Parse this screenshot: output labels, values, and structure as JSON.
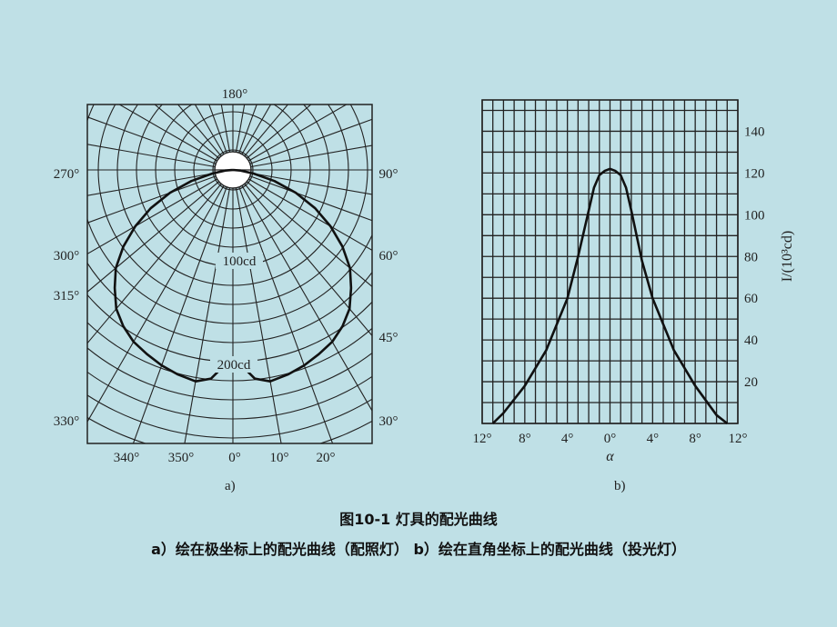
{
  "figure": {
    "caption_title": "图10-1  灯具的配光曲线",
    "caption_sub": "a）绘在极坐标上的配光曲线（配照灯）  b）绘在直角坐标上的配光曲线（投光灯）",
    "panel_a_label": "a)",
    "panel_b_label": "b)"
  },
  "chart_data": [
    {
      "id": "a",
      "type": "line",
      "coordinate_system": "polar",
      "angle_labels": [
        "180°",
        "270°",
        "90°",
        "300°",
        "60°",
        "315°",
        "45°",
        "330°",
        "30°",
        "340°",
        "350°",
        "0°",
        "10°",
        "20°"
      ],
      "radius_labels": [
        "100cd",
        "200cd"
      ],
      "series": [
        {
          "angle_deg": [
            0,
            3,
            6,
            10,
            15,
            20,
            25,
            30,
            35,
            40,
            45,
            50,
            55,
            60,
            65,
            70,
            75,
            80,
            85,
            90
          ],
          "intensity_cd": [
            205,
            207,
            220,
            225,
            222,
            218,
            213,
            208,
            200,
            190,
            175,
            160,
            140,
            118,
            95,
            70,
            45,
            22,
            8,
            0
          ]
        }
      ],
      "grid": true
    },
    {
      "id": "b",
      "type": "line",
      "xlabel": "α",
      "ylabel": "I/(10³cd)",
      "x_tick_labels": [
        "12°",
        "8°",
        "4°",
        "0°",
        "4°",
        "8°",
        "12°"
      ],
      "y_ticks": [
        20,
        40,
        60,
        80,
        100,
        120,
        140
      ],
      "xlim": [
        -12,
        12
      ],
      "ylim": [
        0,
        155
      ],
      "grid": true,
      "series": [
        {
          "x": [
            -11,
            -10,
            -8,
            -6,
            -4,
            -3,
            -2,
            -1.5,
            -1,
            -0.5,
            0,
            0.5,
            1,
            1.5,
            2,
            3,
            4,
            6,
            8,
            10,
            11
          ],
          "y": [
            0,
            5,
            18,
            35,
            60,
            80,
            102,
            113,
            119,
            121,
            122,
            121,
            119,
            113,
            102,
            78,
            60,
            35,
            18,
            4,
            0
          ]
        }
      ]
    }
  ]
}
